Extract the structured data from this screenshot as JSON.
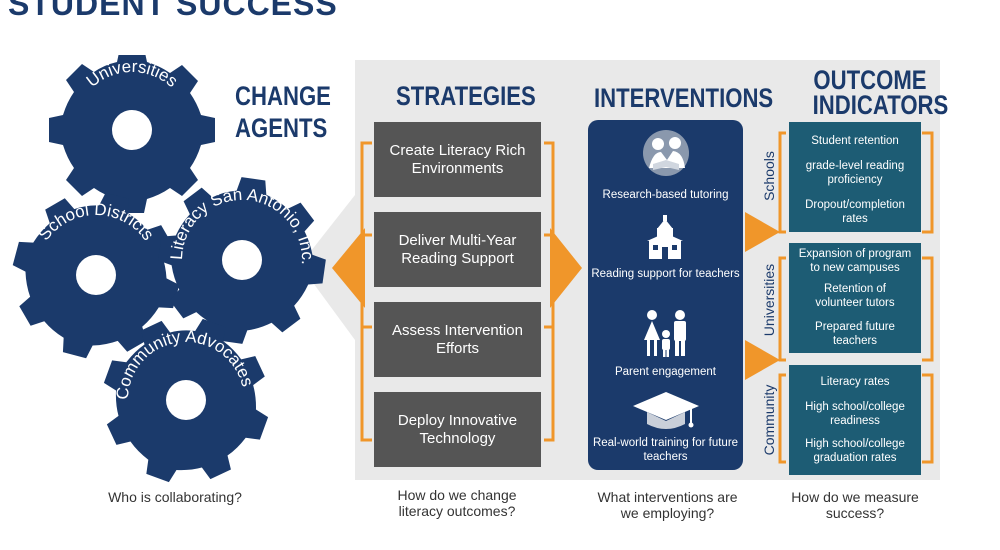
{
  "title": "STUDENT SUCCESS",
  "colors": {
    "navy": "#1b3a6b",
    "orange": "#f0962a",
    "gray_box": "#555555",
    "teal": "#1d5c74",
    "panel": "#e9e9e9"
  },
  "change_agents": {
    "heading": "CHANGE AGENTS",
    "gears": [
      "Universities",
      "School Districts",
      "Literacy San Antonio, Inc.",
      "Community Advocates"
    ],
    "question": "Who is collaborating?"
  },
  "strategies": {
    "heading": "STRATEGIES",
    "items": [
      "Create Literacy Rich Environments",
      "Deliver Multi-Year Reading Support",
      "Assess Intervention Efforts",
      "Deploy Innovative Technology"
    ],
    "question": "How do we change literacy outcomes?"
  },
  "interventions": {
    "heading": "INTERVENTIONS",
    "items": [
      {
        "label": "Research-based tutoring",
        "icon": "reading-people-icon"
      },
      {
        "label": "Reading support for teachers",
        "icon": "schoolhouse-icon"
      },
      {
        "label": "Parent engagement",
        "icon": "family-icon"
      },
      {
        "label": "Real-world training for future teachers",
        "icon": "graduation-cap-icon"
      }
    ],
    "question": "What interventions are we employing?"
  },
  "outcomes": {
    "heading": "OUTCOME INDICATORS",
    "groups": [
      {
        "label": "Schools",
        "items": [
          "Student retention",
          "grade-level reading proficiency",
          "Dropout/completion rates"
        ]
      },
      {
        "label": "Universities",
        "items": [
          "Expansion of program to new campuses",
          "Retention of volunteer tutors",
          "Prepared future teachers"
        ]
      },
      {
        "label": "Community",
        "items": [
          "Literacy rates",
          "High school/college readiness",
          "High school/college graduation rates"
        ]
      }
    ],
    "question": "How do we measure success?"
  }
}
